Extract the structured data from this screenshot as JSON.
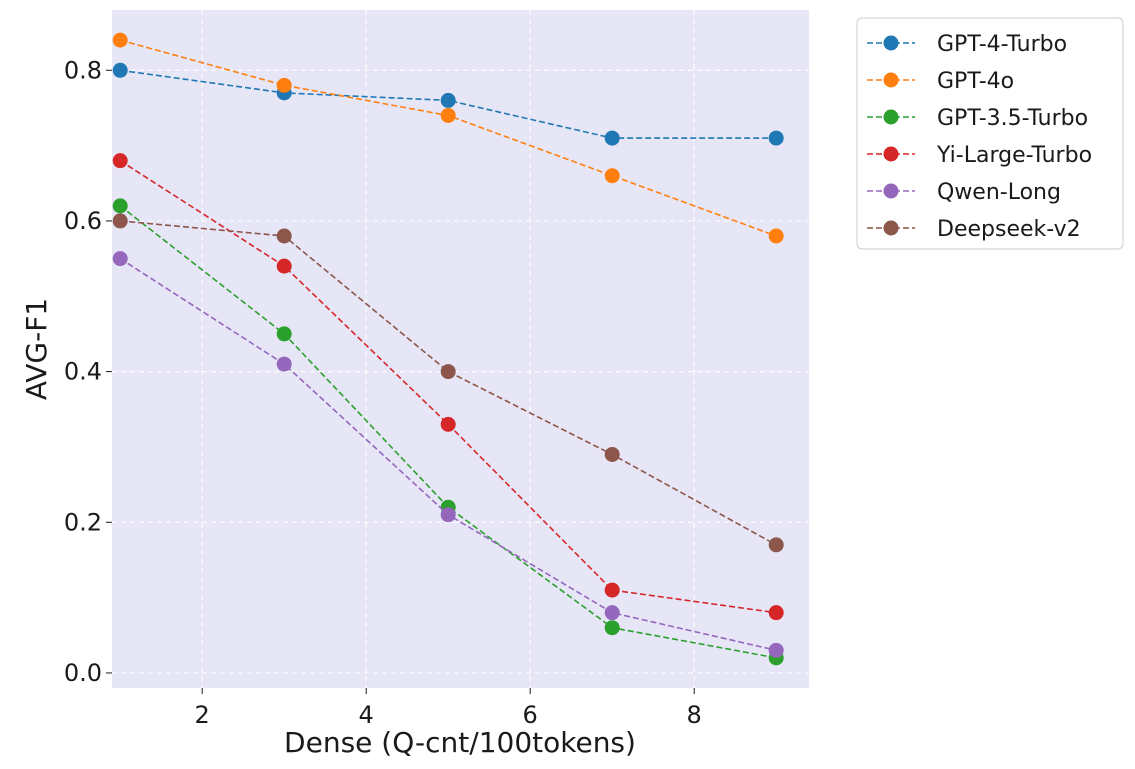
{
  "chart_data": {
    "type": "line",
    "title": "",
    "xlabel": "Dense (Q-cnt/100tokens)",
    "ylabel": "AVG-F1",
    "xlim": [
      0.9,
      9.4
    ],
    "ylim": [
      -0.02,
      0.88
    ],
    "x_ticks": [
      2,
      4,
      6,
      8
    ],
    "x_tick_labels": [
      "2",
      "4",
      "6",
      "8"
    ],
    "y_ticks": [
      0.0,
      0.2,
      0.4,
      0.6,
      0.8
    ],
    "y_tick_labels": [
      "0.0",
      "0.2",
      "0.4",
      "0.6",
      "0.8"
    ],
    "grid": true,
    "legend_position": "outside-top-right",
    "background_color": "#e6e6f7",
    "x": [
      1,
      3,
      5,
      7,
      9
    ],
    "series": [
      {
        "name": "GPT-4-Turbo",
        "color": "#1f77b4",
        "values": [
          0.8,
          0.77,
          0.76,
          0.71,
          0.71
        ]
      },
      {
        "name": "GPT-4o",
        "color": "#ff7f0e",
        "values": [
          0.84,
          0.78,
          0.74,
          0.66,
          0.58
        ]
      },
      {
        "name": "GPT-3.5-Turbo",
        "color": "#2ca02c",
        "values": [
          0.62,
          0.45,
          0.22,
          0.06,
          0.02
        ]
      },
      {
        "name": "Yi-Large-Turbo",
        "color": "#d62728",
        "values": [
          0.68,
          0.54,
          0.33,
          0.11,
          0.08
        ]
      },
      {
        "name": "Qwen-Long",
        "color": "#9467bd",
        "values": [
          0.55,
          0.41,
          0.21,
          0.08,
          0.03
        ]
      },
      {
        "name": "Deepseek-v2",
        "color": "#8c564b",
        "values": [
          0.6,
          0.58,
          0.4,
          0.29,
          0.17
        ]
      }
    ]
  }
}
